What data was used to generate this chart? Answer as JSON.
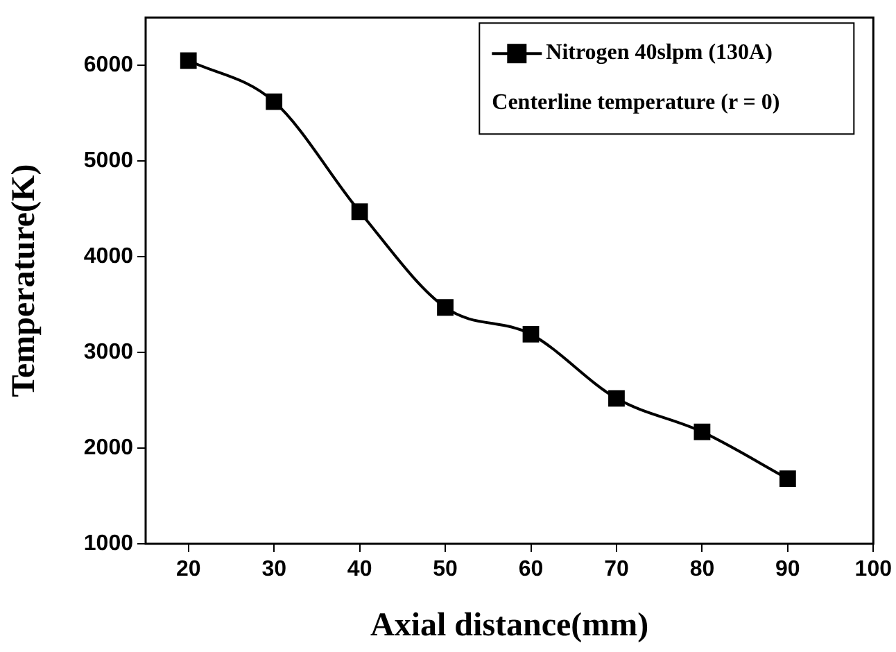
{
  "chart_data": {
    "type": "line",
    "xlabel": "Axial distance(mm)",
    "ylabel": "Temperature(K)",
    "x": [
      20,
      30,
      40,
      50,
      60,
      70,
      80,
      90
    ],
    "series": [
      {
        "name": "Nitrogen 40slpm (130A)",
        "color": "#000000",
        "values": [
          6050,
          5620,
          4470,
          3470,
          3190,
          2520,
          2170,
          1680
        ]
      }
    ],
    "xlim": [
      15,
      100
    ],
    "xticks": [
      20,
      30,
      40,
      50,
      60,
      70,
      80,
      90,
      100
    ],
    "ylim": [
      1000,
      6500
    ],
    "yticks": [
      1000,
      2000,
      3000,
      4000,
      5000,
      6000
    ],
    "annotations": [
      "Centerline temperature (r = 0)"
    ],
    "legend": "top right",
    "marker": "square",
    "line_style": "solid",
    "grid": false
  }
}
